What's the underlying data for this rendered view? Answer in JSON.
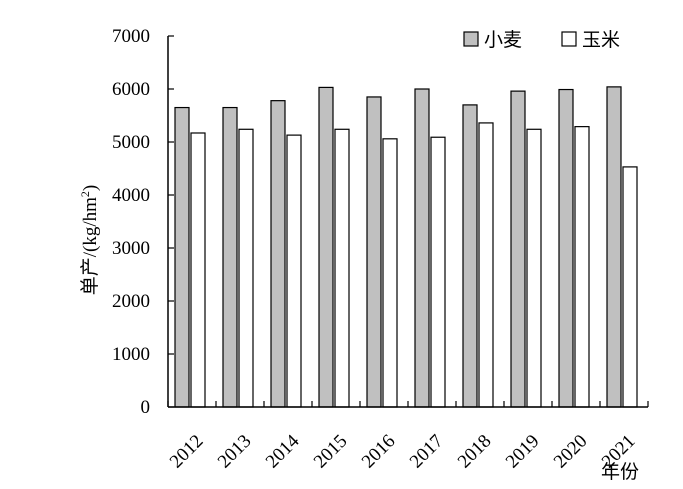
{
  "chart_data": {
    "type": "bar",
    "ylabel": "单产/(kg/hm²)",
    "ylabel_main": "单产/(kg/hm",
    "ylabel_sup": "2",
    "ylabel_close": ")",
    "xlabel": "年份",
    "ylim": [
      0,
      7000
    ],
    "yticks": [
      0,
      1000,
      2000,
      3000,
      4000,
      5000,
      6000,
      7000
    ],
    "legend_position": "top-right",
    "grid": false,
    "categories": [
      "2012",
      "2013",
      "2014",
      "2015",
      "2016",
      "2017",
      "2018",
      "2019",
      "2020",
      "2021"
    ],
    "series": [
      {
        "name": "小麦",
        "color": "#c0c0c0",
        "values": [
          5650,
          5650,
          5780,
          6030,
          5850,
          6000,
          5700,
          5960,
          5990,
          6040
        ]
      },
      {
        "name": "玉米",
        "color": "#ffffff",
        "values": [
          5170,
          5240,
          5130,
          5240,
          5060,
          5090,
          5360,
          5240,
          5290,
          4530
        ]
      }
    ]
  }
}
